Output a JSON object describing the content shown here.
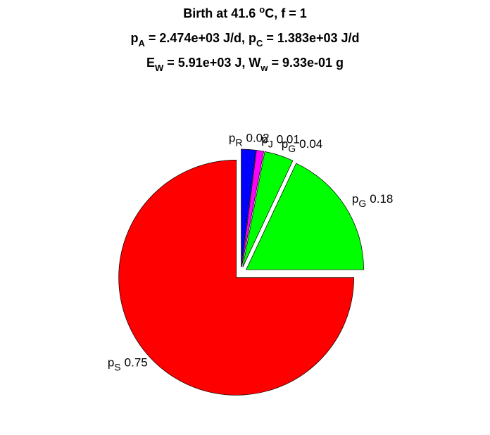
{
  "chart_data": {
    "type": "pie",
    "title": [
      [
        {
          "text": "Birth at 41.6 "
        },
        {
          "text": "o",
          "script": "sup"
        },
        {
          "text": "C, f = 1"
        }
      ],
      [
        {
          "text": "p"
        },
        {
          "text": "A",
          "script": "sub"
        },
        {
          "text": " = 2.474e+03 J/d, p"
        },
        {
          "text": "C",
          "script": "sub"
        },
        {
          "text": " = 1.383e+03 J/d"
        }
      ],
      [
        {
          "text": "E"
        },
        {
          "text": "W",
          "script": "sub"
        },
        {
          "text": " = 5.91e+03 J, W"
        },
        {
          "text": "w",
          "script": "sub"
        },
        {
          "text": " = 9.33e-01 g"
        }
      ]
    ],
    "categories": [
      [
        {
          "text": "p"
        },
        {
          "text": "S",
          "script": "sub"
        }
      ],
      [
        {
          "text": "p"
        },
        {
          "text": "G",
          "script": "sub"
        }
      ],
      [
        {
          "text": "p"
        },
        {
          "text": "G",
          "script": "sub"
        }
      ],
      [
        {
          "text": "p"
        },
        {
          "text": "J",
          "script": "sub"
        }
      ],
      [
        {
          "text": "p"
        },
        {
          "text": "R",
          "script": "sub"
        }
      ]
    ],
    "values": [
      0.75,
      0.18,
      0.04,
      0.01,
      0.02
    ],
    "colors": [
      "#ff0000",
      "#00ff00",
      "#00ff00",
      "#ff00ff",
      "#0000ff"
    ],
    "explode": true
  }
}
